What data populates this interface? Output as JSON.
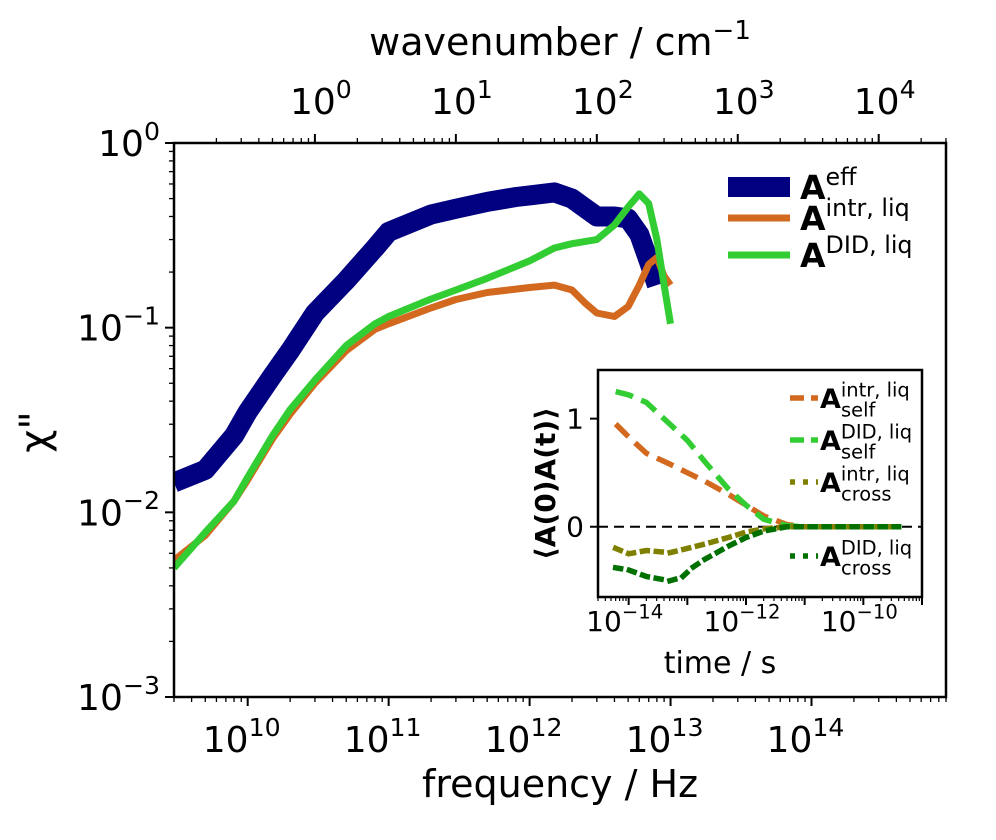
{
  "chart_data": [
    {
      "type": "line",
      "scale": "log-log",
      "xlabel": "frequency / Hz",
      "ylabel": "χ\"",
      "top_xlabel": "wavenumber / cm",
      "top_xlabel_sup": "−1",
      "xlim": [
        3000000000.0,
        900000000000000.0
      ],
      "ylim": [
        0.001,
        1
      ],
      "x_ticks": [
        {
          "value": 10000000000.0,
          "base": "10",
          "exp": "10"
        },
        {
          "value": 100000000000.0,
          "base": "10",
          "exp": "11"
        },
        {
          "value": 1000000000000.0,
          "base": "10",
          "exp": "12"
        },
        {
          "value": 10000000000000.0,
          "base": "10",
          "exp": "13"
        },
        {
          "value": 100000000000000.0,
          "base": "10",
          "exp": "14"
        }
      ],
      "y_ticks": [
        {
          "value": 1,
          "base": "10",
          "exp": "0"
        },
        {
          "value": 0.1,
          "base": "10",
          "exp": "−1"
        },
        {
          "value": 0.01,
          "base": "10",
          "exp": "−2"
        },
        {
          "value": 0.001,
          "base": "10",
          "exp": "−3"
        }
      ],
      "top_ticks": [
        {
          "value": 1,
          "base": "10",
          "exp": "0"
        },
        {
          "value": 10,
          "base": "10",
          "exp": "1"
        },
        {
          "value": 100,
          "base": "10",
          "exp": "2"
        },
        {
          "value": 1000,
          "base": "10",
          "exp": "3"
        },
        {
          "value": 10000,
          "base": "10",
          "exp": "4"
        }
      ],
      "hz_per_wavenumber": 29980000000.0,
      "legend_position": "upper-right",
      "series": [
        {
          "name": "A",
          "sup": "eff",
          "sub": "",
          "color": "#000080",
          "style": "solid",
          "x": [
            3000000000.0,
            5000000000.0,
            8000000000.0,
            10000000000.0,
            15000000000.0,
            20000000000.0,
            30000000000.0,
            50000000000.0,
            80000000000.0,
            100000000000.0,
            200000000000.0,
            300000000000.0,
            500000000000.0,
            800000000000.0,
            1000000000000.0,
            1500000000000.0,
            2000000000000.0,
            3000000000000.0,
            4000000000000.0,
            5000000000000.0,
            6000000000000.0,
            7000000000000.0,
            8000000000000.0
          ],
          "y": [
            0.0145,
            0.017,
            0.026,
            0.035,
            0.055,
            0.075,
            0.12,
            0.18,
            0.27,
            0.33,
            0.41,
            0.44,
            0.48,
            0.51,
            0.52,
            0.54,
            0.5,
            0.4,
            0.4,
            0.39,
            0.32,
            0.23,
            0.17
          ]
        },
        {
          "name": "A",
          "sup": "intr, liq",
          "sub": "",
          "color": "#d2691e",
          "style": "solid",
          "x": [
            3000000000.0,
            5000000000.0,
            8000000000.0,
            10000000000.0,
            15000000000.0,
            20000000000.0,
            30000000000.0,
            50000000000.0,
            80000000000.0,
            100000000000.0,
            200000000000.0,
            300000000000.0,
            500000000000.0,
            1000000000000.0,
            1500000000000.0,
            2000000000000.0,
            2500000000000.0,
            3000000000000.0,
            4000000000000.0,
            5000000000000.0,
            6000000000000.0,
            7000000000000.0,
            8000000000000.0,
            9000000000000.0,
            10000000000000.0
          ],
          "y": [
            0.0055,
            0.0075,
            0.0115,
            0.015,
            0.025,
            0.034,
            0.05,
            0.075,
            0.098,
            0.105,
            0.128,
            0.142,
            0.155,
            0.165,
            0.17,
            0.16,
            0.135,
            0.12,
            0.115,
            0.13,
            0.17,
            0.22,
            0.24,
            0.19,
            0.17
          ]
        },
        {
          "name": "A",
          "sup": "DID, liq",
          "sub": "",
          "color": "#32cd32",
          "style": "solid",
          "x": [
            3000000000.0,
            5000000000.0,
            8000000000.0,
            10000000000.0,
            15000000000.0,
            20000000000.0,
            30000000000.0,
            50000000000.0,
            80000000000.0,
            100000000000.0,
            200000000000.0,
            300000000000.0,
            500000000000.0,
            1000000000000.0,
            1500000000000.0,
            2000000000000.0,
            3000000000000.0,
            4000000000000.0,
            5000000000000.0,
            6000000000000.0,
            7000000000000.0,
            8000000000000.0,
            9000000000000.0,
            10000000000000.0
          ],
          "y": [
            0.005,
            0.0078,
            0.0115,
            0.0155,
            0.026,
            0.036,
            0.052,
            0.08,
            0.105,
            0.115,
            0.143,
            0.16,
            0.185,
            0.23,
            0.27,
            0.285,
            0.3,
            0.36,
            0.45,
            0.53,
            0.47,
            0.3,
            0.17,
            0.105
          ]
        }
      ]
    },
    {
      "type": "line",
      "role": "inset",
      "scale": "log-x",
      "xlabel": "time / s",
      "ylabel": "⟨A(0)A(t)⟩",
      "xlim": [
        3e-15,
        1e-09
      ],
      "ylim": [
        -0.65,
        1.45
      ],
      "x_ticks": [
        {
          "value": 1e-14,
          "base": "10",
          "exp": "−14"
        },
        {
          "value": 1e-12,
          "base": "10",
          "exp": "−12"
        },
        {
          "value": 1e-10,
          "base": "10",
          "exp": "−10"
        }
      ],
      "y_ticks": [
        {
          "value": 1,
          "label": "1"
        },
        {
          "value": 0,
          "label": "0"
        }
      ],
      "zero_line": 0,
      "legend_position": "right",
      "series": [
        {
          "name": "A",
          "sup": "intr, liq",
          "sub": "self",
          "color": "#d2691e",
          "style": "dashed",
          "x": [
            6e-15,
            1e-14,
            2e-14,
            5e-14,
            1e-13,
            2e-13,
            5e-13,
            1e-12,
            2e-12,
            5e-12,
            1e-11,
            2e-11,
            5e-11,
            1e-10,
            4e-10
          ],
          "y": [
            0.95,
            0.83,
            0.68,
            0.58,
            0.5,
            0.42,
            0.3,
            0.2,
            0.1,
            0.02,
            0.0,
            0.0,
            0.0,
            0.0,
            0.0
          ]
        },
        {
          "name": "A",
          "sup": "DID, liq",
          "sub": "self",
          "color": "#32cd32",
          "style": "dashed",
          "x": [
            6e-15,
            1e-14,
            2e-14,
            5e-14,
            1e-13,
            2e-13,
            5e-13,
            1e-12,
            2e-12,
            5e-12,
            1e-11,
            2e-11,
            5e-11,
            1e-10,
            4e-10
          ],
          "y": [
            1.25,
            1.22,
            1.15,
            0.95,
            0.8,
            0.6,
            0.35,
            0.2,
            0.07,
            0.01,
            0.0,
            0.0,
            0.0,
            0.0,
            0.0
          ]
        },
        {
          "name": "A",
          "sup": "intr, liq",
          "sub": "cross",
          "color": "#808000",
          "style": "dotted",
          "x": [
            6e-15,
            1e-14,
            2e-14,
            5e-14,
            1e-13,
            2e-13,
            5e-13,
            1e-12,
            2e-12,
            5e-12,
            1e-11,
            2e-11,
            5e-11,
            1e-10,
            4e-10
          ],
          "y": [
            -0.2,
            -0.25,
            -0.22,
            -0.24,
            -0.2,
            -0.16,
            -0.1,
            -0.05,
            -0.02,
            0.0,
            0.0,
            0.0,
            0.0,
            0.0,
            0.0
          ]
        },
        {
          "name": "A",
          "sup": "DID, liq",
          "sub": "cross",
          "color": "#007000",
          "style": "dotted",
          "x": [
            6e-15,
            1e-14,
            2e-14,
            5e-14,
            8e-14,
            1.2e-13,
            2e-13,
            5e-13,
            1e-12,
            2e-12,
            5e-12,
            1e-11,
            2e-11,
            5e-11,
            1e-10,
            4e-10
          ],
          "y": [
            -0.38,
            -0.4,
            -0.46,
            -0.5,
            -0.47,
            -0.38,
            -0.3,
            -0.18,
            -0.1,
            -0.04,
            0.0,
            0.0,
            0.0,
            0.0,
            0.0,
            0.0
          ]
        }
      ]
    }
  ]
}
